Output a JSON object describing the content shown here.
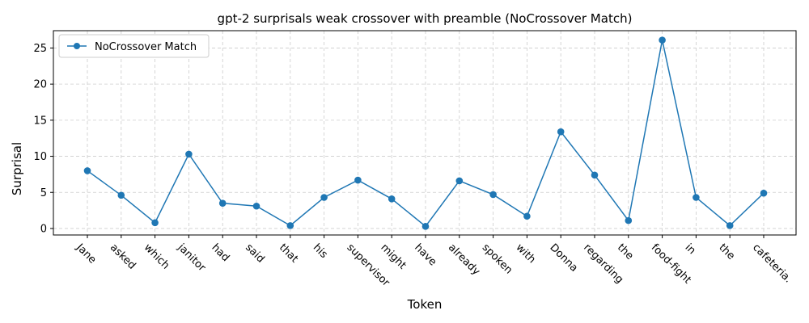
{
  "chart_data": {
    "type": "line",
    "title": "gpt-2 surprisals weak crossover with preamble (NoCrossover Match)",
    "xlabel": "Token",
    "ylabel": "Surprisal",
    "categories": [
      "Jane",
      "asked",
      "which",
      "janitor",
      "had",
      "said",
      "that",
      "his",
      "supervisor",
      "might",
      "have",
      "already",
      "spoken",
      "with",
      "Donna",
      "regarding",
      "the",
      "food-fight",
      "in",
      "the",
      "cafeteria."
    ],
    "series": [
      {
        "name": "NoCrossover Match",
        "color": "#1f77b4",
        "values": [
          8.0,
          4.6,
          0.8,
          10.3,
          3.5,
          3.1,
          0.4,
          4.3,
          6.7,
          4.1,
          0.3,
          6.6,
          4.7,
          1.7,
          13.4,
          7.4,
          1.1,
          26.1,
          4.3,
          0.4,
          4.9
        ]
      }
    ],
    "ylim": [
      -0.9,
      27.4
    ],
    "yticks": [
      0,
      5,
      10,
      15,
      20,
      25
    ],
    "grid": true,
    "legend": "upper-left",
    "marker": "circle"
  }
}
